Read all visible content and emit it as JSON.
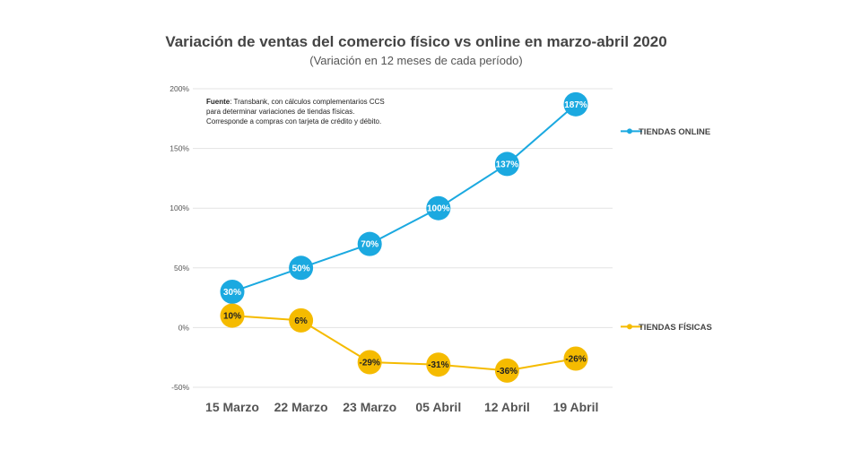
{
  "chart_data": {
    "type": "line",
    "title": "Variación de ventas del comercio físico vs online en marzo-abril 2020",
    "subtitle": "(Variación en 12 meses de cada período)",
    "categories": [
      "15 Marzo",
      "22 Marzo",
      "23 Marzo",
      "05 Abril",
      "12 Abril",
      "19 Abril"
    ],
    "y_ticks": [
      "200%",
      "150%",
      "100%",
      "50%",
      "0%",
      "-50%"
    ],
    "ylim": [
      -50,
      200
    ],
    "grid": true,
    "legend_position": "right",
    "series": [
      {
        "name": "TIENDAS ONLINE",
        "color": "#1ba9e0",
        "label_color": "#ffffff",
        "values": [
          30,
          50,
          70,
          100,
          137,
          187
        ],
        "labels": [
          "30%",
          "50%",
          "70%",
          "100%",
          "137%",
          "187%"
        ]
      },
      {
        "name": "TIENDAS FÍSICAS",
        "color": "#f5bb00",
        "label_color": "#222222",
        "values": [
          10,
          6,
          -29,
          -31,
          -36,
          -26
        ],
        "labels": [
          "10%",
          "6%",
          "-29%",
          "-31%",
          "-36%",
          "-26%"
        ]
      }
    ],
    "note": {
      "bold": "Fuente",
      "line1": ": Transbank, con cálculos complementarios CCS",
      "line2": "para determinar variaciones de tiendas físicas.",
      "line3": "Corresponde a compras con tarjeta de crédito y débito."
    }
  }
}
